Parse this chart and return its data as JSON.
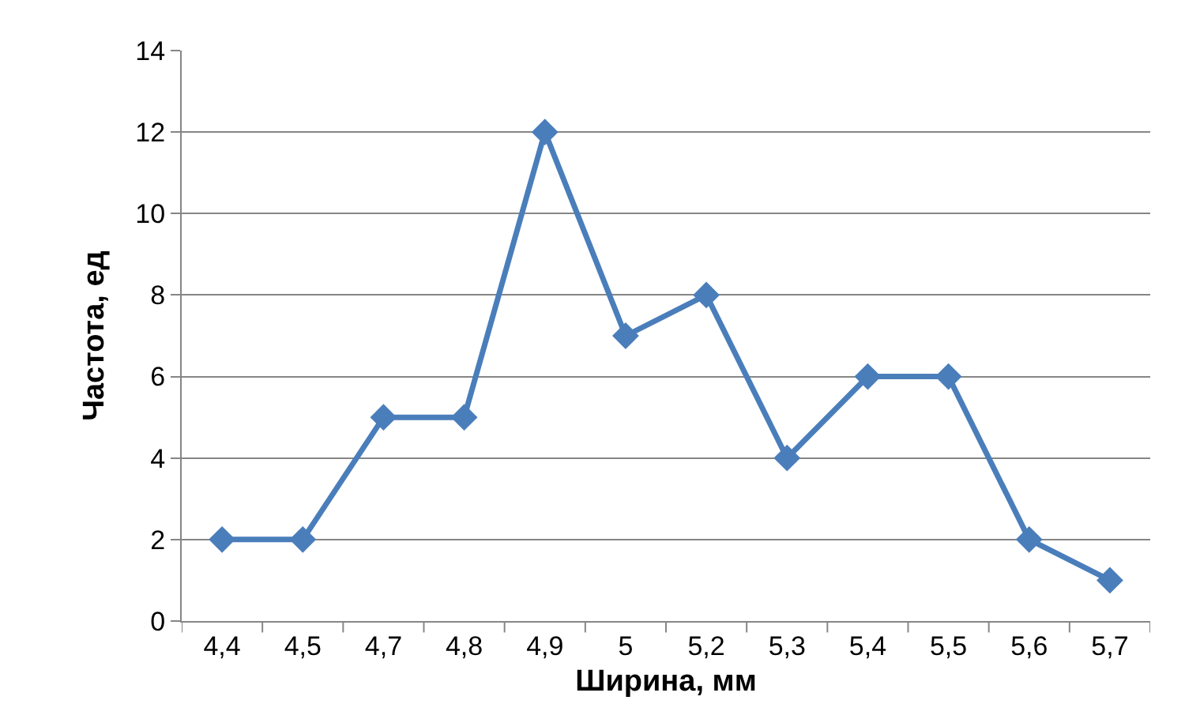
{
  "chart_data": {
    "type": "line",
    "xlabel": "Ширина, мм",
    "ylabel": "Частота, ед",
    "categories": [
      "4,4",
      "4,5",
      "4,7",
      "4,8",
      "4,9",
      "5",
      "5,2",
      "5,3",
      "5,4",
      "5,5",
      "5,6",
      "5,7"
    ],
    "series": [
      {
        "color": "#4a7ebb",
        "values": [
          2,
          2,
          5,
          5,
          12,
          7,
          8,
          4,
          6,
          6,
          2,
          1
        ]
      }
    ],
    "ylim": [
      0,
      14
    ],
    "yticks": [
      0,
      2,
      4,
      6,
      8,
      10,
      12,
      14
    ],
    "grid": "y",
    "legend": false,
    "marker": "diamond",
    "line_style": "solid"
  }
}
